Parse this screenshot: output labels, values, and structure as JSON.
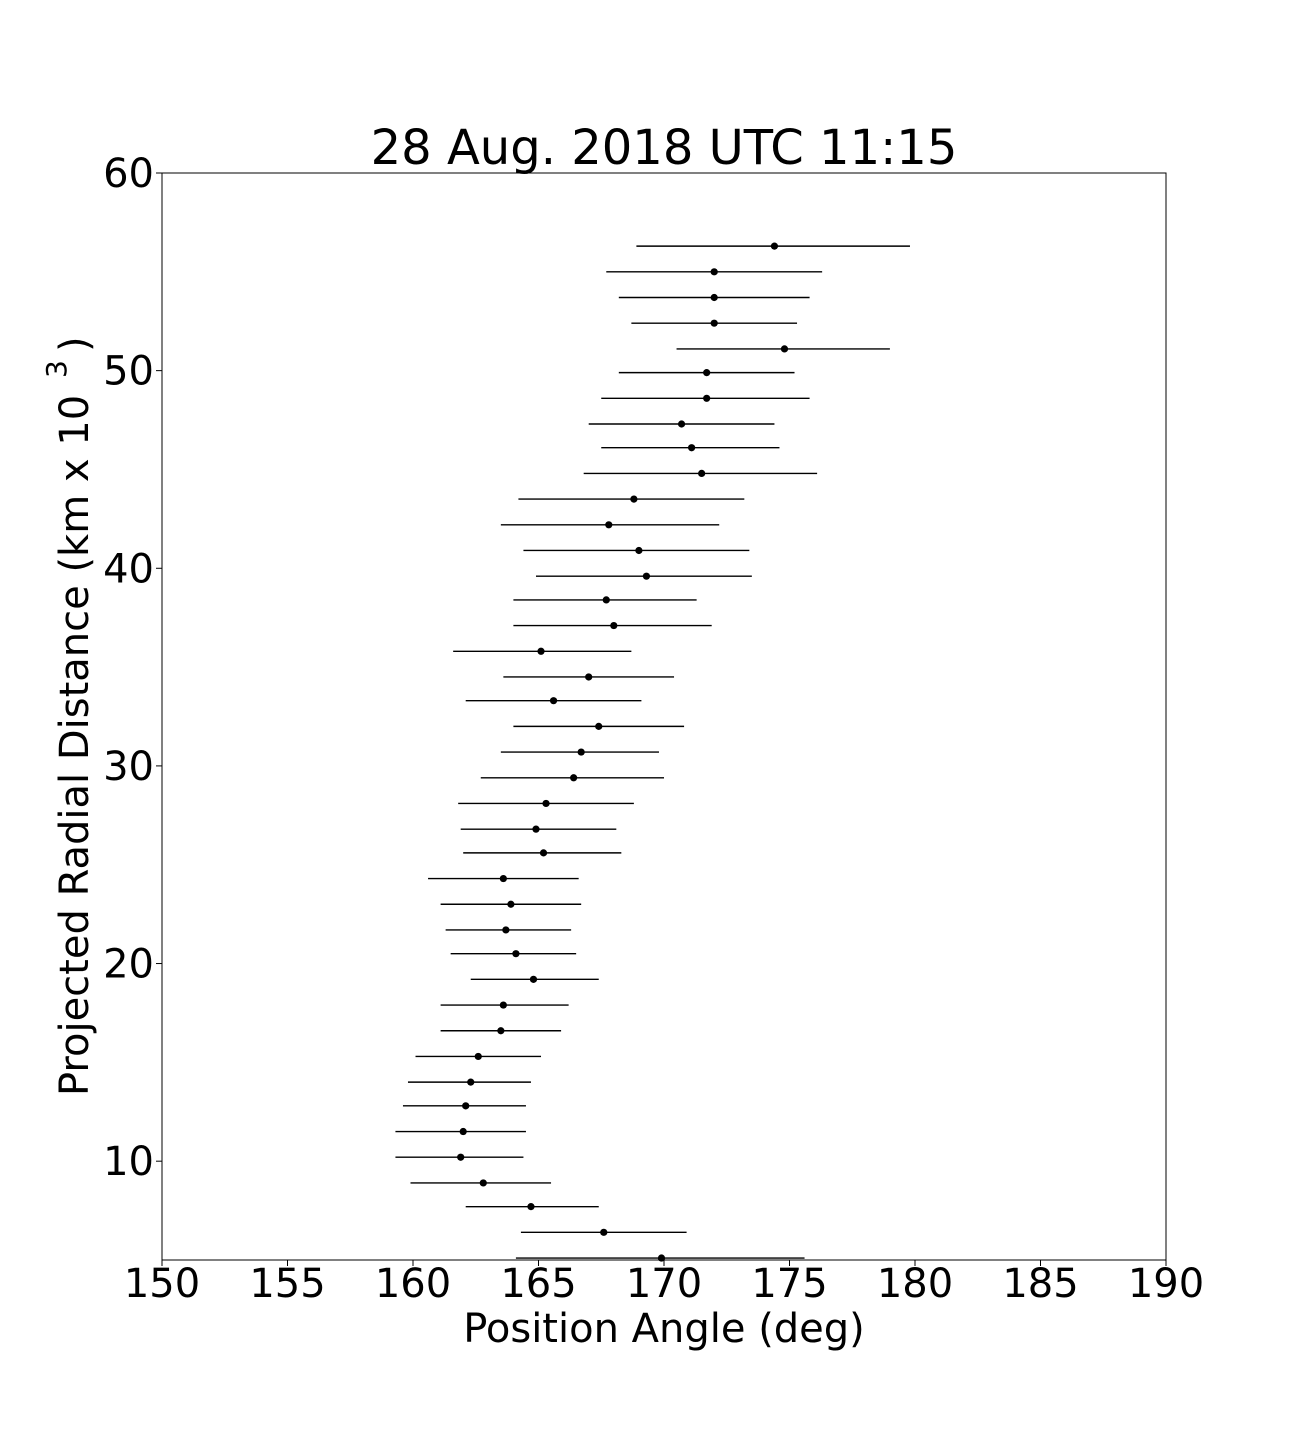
{
  "chart_data": {
    "type": "scatter",
    "title": "28 Aug. 2018 UTC 11:15",
    "xlabel": "Position Angle (deg)",
    "ylabel_main": "Projected Radial Distance (km x 10",
    "ylabel_sup": "3",
    "ylabel_close": ")",
    "xlim": [
      150,
      190
    ],
    "ylim": [
      5,
      60
    ],
    "xticks": [
      150,
      155,
      160,
      165,
      170,
      175,
      180,
      185,
      190
    ],
    "yticks": [
      10,
      20,
      30,
      40,
      50,
      60
    ],
    "grid": false,
    "marker_color": "#000000",
    "errorbar_color": "#000000",
    "series": [
      {
        "points": [
          {
            "y": 5.1,
            "x": 169.9,
            "xerr_low": 164.1,
            "xerr_high": 175.6
          },
          {
            "y": 6.4,
            "x": 167.6,
            "xerr_low": 164.3,
            "xerr_high": 170.9
          },
          {
            "y": 7.7,
            "x": 164.7,
            "xerr_low": 162.1,
            "xerr_high": 167.4
          },
          {
            "y": 8.9,
            "x": 162.8,
            "xerr_low": 159.9,
            "xerr_high": 165.5
          },
          {
            "y": 10.2,
            "x": 161.9,
            "xerr_low": 159.3,
            "xerr_high": 164.4
          },
          {
            "y": 11.5,
            "x": 162.0,
            "xerr_low": 159.3,
            "xerr_high": 164.5
          },
          {
            "y": 12.8,
            "x": 162.1,
            "xerr_low": 159.6,
            "xerr_high": 164.5
          },
          {
            "y": 14.0,
            "x": 162.3,
            "xerr_low": 159.8,
            "xerr_high": 164.7
          },
          {
            "y": 15.3,
            "x": 162.6,
            "xerr_low": 160.1,
            "xerr_high": 165.1
          },
          {
            "y": 16.6,
            "x": 163.5,
            "xerr_low": 161.1,
            "xerr_high": 165.9
          },
          {
            "y": 17.9,
            "x": 163.6,
            "xerr_low": 161.1,
            "xerr_high": 166.2
          },
          {
            "y": 19.2,
            "x": 164.8,
            "xerr_low": 162.3,
            "xerr_high": 167.4
          },
          {
            "y": 20.5,
            "x": 164.1,
            "xerr_low": 161.5,
            "xerr_high": 166.5
          },
          {
            "y": 21.7,
            "x": 163.7,
            "xerr_low": 161.3,
            "xerr_high": 166.3
          },
          {
            "y": 23.0,
            "x": 163.9,
            "xerr_low": 161.1,
            "xerr_high": 166.7
          },
          {
            "y": 24.3,
            "x": 163.6,
            "xerr_low": 160.6,
            "xerr_high": 166.6
          },
          {
            "y": 25.6,
            "x": 165.2,
            "xerr_low": 162.0,
            "xerr_high": 168.3
          },
          {
            "y": 26.8,
            "x": 164.9,
            "xerr_low": 161.9,
            "xerr_high": 168.1
          },
          {
            "y": 28.1,
            "x": 165.3,
            "xerr_low": 161.8,
            "xerr_high": 168.8
          },
          {
            "y": 29.4,
            "x": 166.4,
            "xerr_low": 162.7,
            "xerr_high": 170.0
          },
          {
            "y": 30.7,
            "x": 166.7,
            "xerr_low": 163.5,
            "xerr_high": 169.8
          },
          {
            "y": 32.0,
            "x": 167.4,
            "xerr_low": 164.0,
            "xerr_high": 170.8
          },
          {
            "y": 33.3,
            "x": 165.6,
            "xerr_low": 162.1,
            "xerr_high": 169.1
          },
          {
            "y": 34.5,
            "x": 167.0,
            "xerr_low": 163.6,
            "xerr_high": 170.4
          },
          {
            "y": 35.8,
            "x": 165.1,
            "xerr_low": 161.6,
            "xerr_high": 168.7
          },
          {
            "y": 37.1,
            "x": 168.0,
            "xerr_low": 164.0,
            "xerr_high": 171.9
          },
          {
            "y": 38.4,
            "x": 167.7,
            "xerr_low": 164.0,
            "xerr_high": 171.3
          },
          {
            "y": 39.6,
            "x": 169.3,
            "xerr_low": 164.9,
            "xerr_high": 173.5
          },
          {
            "y": 40.9,
            "x": 169.0,
            "xerr_low": 164.4,
            "xerr_high": 173.4
          },
          {
            "y": 42.2,
            "x": 167.8,
            "xerr_low": 163.5,
            "xerr_high": 172.2
          },
          {
            "y": 43.5,
            "x": 168.8,
            "xerr_low": 164.2,
            "xerr_high": 173.2
          },
          {
            "y": 44.8,
            "x": 171.5,
            "xerr_low": 166.8,
            "xerr_high": 176.1
          },
          {
            "y": 46.1,
            "x": 171.1,
            "xerr_low": 167.5,
            "xerr_high": 174.6
          },
          {
            "y": 47.3,
            "x": 170.7,
            "xerr_low": 167.0,
            "xerr_high": 174.4
          },
          {
            "y": 48.6,
            "x": 171.7,
            "xerr_low": 167.5,
            "xerr_high": 175.8
          },
          {
            "y": 49.9,
            "x": 171.7,
            "xerr_low": 168.2,
            "xerr_high": 175.2
          },
          {
            "y": 51.1,
            "x": 174.8,
            "xerr_low": 170.5,
            "xerr_high": 179.0
          },
          {
            "y": 52.4,
            "x": 172.0,
            "xerr_low": 168.7,
            "xerr_high": 175.3
          },
          {
            "y": 53.7,
            "x": 172.0,
            "xerr_low": 168.2,
            "xerr_high": 175.8
          },
          {
            "y": 55.0,
            "x": 172.0,
            "xerr_low": 167.7,
            "xerr_high": 176.3
          },
          {
            "y": 56.3,
            "x": 174.4,
            "xerr_low": 168.9,
            "xerr_high": 179.8
          }
        ]
      }
    ]
  }
}
